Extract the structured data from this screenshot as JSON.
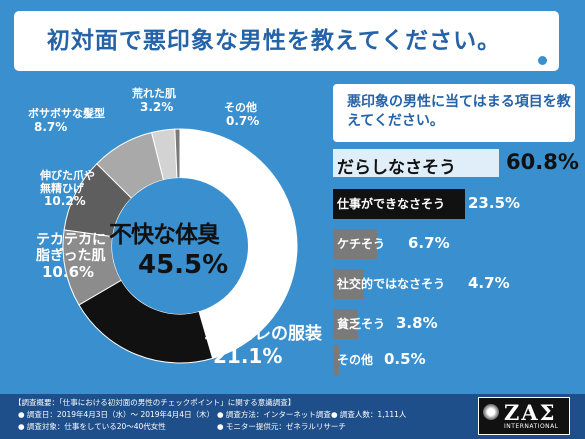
{
  "title": "初対面で悪印象な男性を教えてください。",
  "chart_data": [
    {
      "type": "pie",
      "slices": [
        {
          "name": "不快な体臭",
          "value": 45.5,
          "color": "#ffffff"
        },
        {
          "name": "ヨレヨレの服装",
          "value": 21.1,
          "color": "#111111"
        },
        {
          "name": "テカテカに脂ぎった肌",
          "value": 10.6,
          "color": "#8c8c8c"
        },
        {
          "name": "伸びた爪や無精ひげ",
          "value": 10.2,
          "color": "#5e5e5e"
        },
        {
          "name": "ボサボサな髪型",
          "value": 8.7,
          "color": "#a9a9a9"
        },
        {
          "name": "荒れた肌",
          "value": 3.2,
          "color": "#d3d3d3"
        },
        {
          "name": "その他",
          "value": 0.7,
          "color": "#7a7a7a"
        }
      ],
      "labels": {
        "center_name": "不快な体臭",
        "center_value": "45.5%",
        "clothes_name": "ヨレヨレの服装",
        "clothes_value": "21.1%",
        "skin_name_line1": "テカテカに",
        "skin_name_line2": "脂ぎった肌",
        "skin_value": "10.6%",
        "nails_name_line1": "伸びた爪や",
        "nails_name_line2": "無精ひげ",
        "nails_value": "10.2%",
        "hair_name": "ボサボサな髪型",
        "hair_value": "8.7%",
        "rough_name": "荒れた肌",
        "rough_value": "3.2%",
        "other_name": "その他",
        "other_value": "0.7%"
      }
    },
    {
      "type": "bar",
      "orientation": "horizontal",
      "title": "悪印象の男性に当てはまる項目を教えてください。",
      "categories": [
        "だらしなさそう",
        "仕事ができなさそう",
        "ケチそう",
        "社交的ではなさそう",
        "貧乏そう",
        "その他"
      ],
      "values": [
        60.8,
        23.5,
        6.7,
        4.7,
        3.8,
        0.5
      ],
      "value_labels": [
        "60.8%",
        "23.5%",
        "6.7%",
        "4.7%",
        "3.8%",
        "0.5%"
      ],
      "colors": [
        "#dfeef8",
        "#111111",
        "#7a7a7a",
        "#7a7a7a",
        "#7a7a7a",
        "#7a7a7a"
      ]
    }
  ],
  "footer": {
    "line1": "【調査概要：「仕事における初対面の男性のチェックポイント」に関する意識調査】",
    "line2a": "● 調査日：2019年4月3日（水）～ 2019年4月4日（木）",
    "line2b": "● 調査方法：インターネット調査",
    "line2c": "● 調査人数：1,111人",
    "line3a": "● 調査対象：仕事をしている20～40代女性",
    "line3b": "● モニター提供元：ゼネラルリサーチ"
  },
  "logo": {
    "text": "ZAΣ",
    "sub": "INTERNATIONAL"
  }
}
